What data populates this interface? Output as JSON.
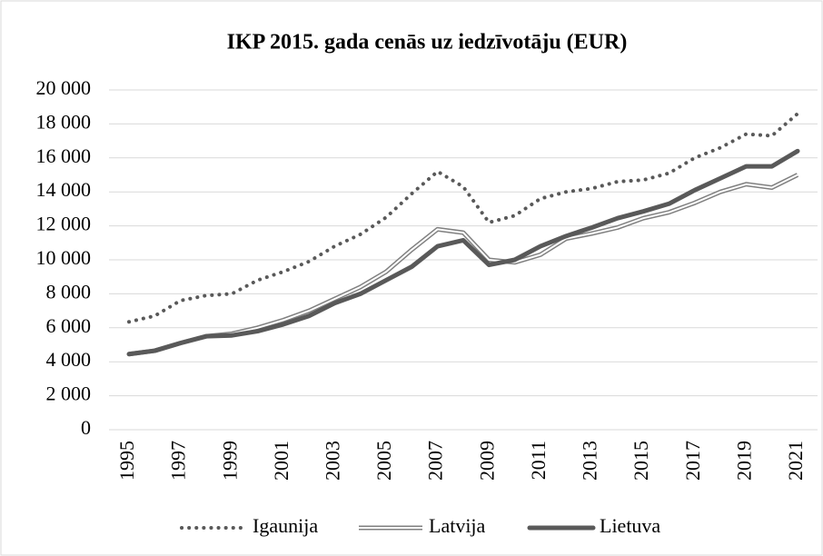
{
  "chart_data": {
    "type": "line",
    "title": "IKP 2015. gada cenās uz iedzīvotāju (EUR)",
    "categories": [
      "1995",
      null,
      "1997",
      null,
      "1999",
      null,
      "2001",
      null,
      "2003",
      null,
      "2005",
      null,
      "2007",
      null,
      "2009",
      null,
      "2011",
      null,
      "2013",
      null,
      "2015",
      null,
      "2017",
      null,
      "2019",
      null,
      "2021"
    ],
    "series": [
      {
        "name": "Igaunija",
        "color": "#595959",
        "style": "dotted",
        "values": [
          6350,
          6700,
          7600,
          7900,
          8000,
          8800,
          9300,
          9900,
          10800,
          11500,
          12500,
          13900,
          15200,
          14300,
          12200,
          12600,
          13600,
          14000,
          14200,
          14600,
          14700,
          15100,
          16000,
          16600,
          17400,
          17300,
          18600
        ]
      },
      {
        "name": "Latvija",
        "color": "#808080",
        "style": "double",
        "values": [
          4450,
          4650,
          5100,
          5500,
          5650,
          6000,
          6450,
          7000,
          7700,
          8400,
          9300,
          10600,
          11800,
          11600,
          10000,
          9850,
          10300,
          11250,
          11550,
          11900,
          12450,
          12800,
          13350,
          14000,
          14450,
          14250,
          15000
        ]
      },
      {
        "name": "Lietuva",
        "color": "#595959",
        "style": "solid",
        "values": [
          4450,
          4650,
          5100,
          5500,
          5550,
          5800,
          6200,
          6700,
          7450,
          8000,
          8800,
          9600,
          10800,
          11150,
          9700,
          10000,
          10800,
          11400,
          11900,
          12450,
          12850,
          13300,
          14100,
          14800,
          15500,
          15500,
          16400
        ]
      }
    ],
    "ylim": [
      0,
      20000
    ],
    "yticks": [
      0,
      {
        "value": 2000,
        "label": "2 000"
      },
      {
        "value": 4000,
        "label": "4 000"
      },
      {
        "value": 6000,
        "label": "6 000"
      },
      {
        "value": 8000,
        "label": "8 000"
      },
      {
        "value": 10000,
        "label": "10 000"
      },
      {
        "value": 12000,
        "label": "12 000"
      },
      {
        "value": 14000,
        "label": "14 000"
      },
      {
        "value": 16000,
        "label": "16 000"
      },
      {
        "value": 18000,
        "label": "18 000"
      },
      {
        "value": 20000,
        "label": "20 000"
      }
    ],
    "grid": true,
    "legend": "bottom"
  }
}
